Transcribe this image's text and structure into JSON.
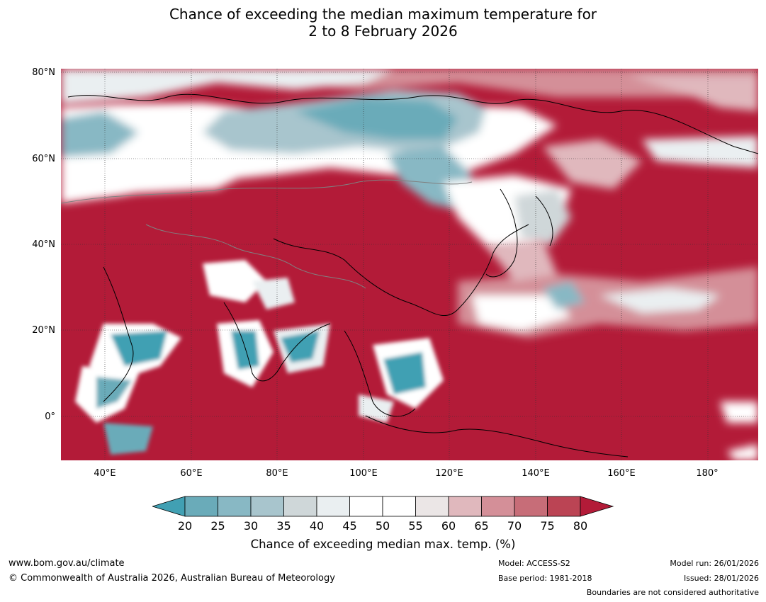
{
  "title": {
    "line1": "Chance of exceeding the median maximum temperature for",
    "line2": "2 to 8 February 2026"
  },
  "map": {
    "lat_labels": [
      "80°N",
      "60°N",
      "40°N",
      "20°N",
      "0°"
    ],
    "lon_labels": [
      "40°E",
      "60°E",
      "80°E",
      "100°E",
      "120°E",
      "140°E",
      "160°E",
      "180°"
    ]
  },
  "colorbar": {
    "ticks": [
      "20",
      "25",
      "30",
      "35",
      "40",
      "45",
      "50",
      "55",
      "60",
      "65",
      "70",
      "75",
      "80"
    ],
    "colors": [
      "#41a0b3",
      "#6aabb9",
      "#88b8c4",
      "#a8c5cd",
      "#cfd7d9",
      "#eaeff1",
      "#ffffff",
      "#ffffff",
      "#ebe6e6",
      "#e0b8bd",
      "#d48f98",
      "#c76d78",
      "#bb4454",
      "#b31b38"
    ],
    "title": "Chance of exceeding median max. temp. (%)"
  },
  "footer": {
    "url": "www.bom.gov.au/climate",
    "copyright": "© Commonwealth of Australia 2026, Australian Bureau of Meteorology",
    "model": "Model: ACCESS-S2",
    "base_period": "Base period: 1981-2018",
    "model_run": "Model run: 26/01/2026",
    "issued": "Issued: 28/01/2026",
    "disclaimer": "Boundaries are not considered authoritative"
  }
}
